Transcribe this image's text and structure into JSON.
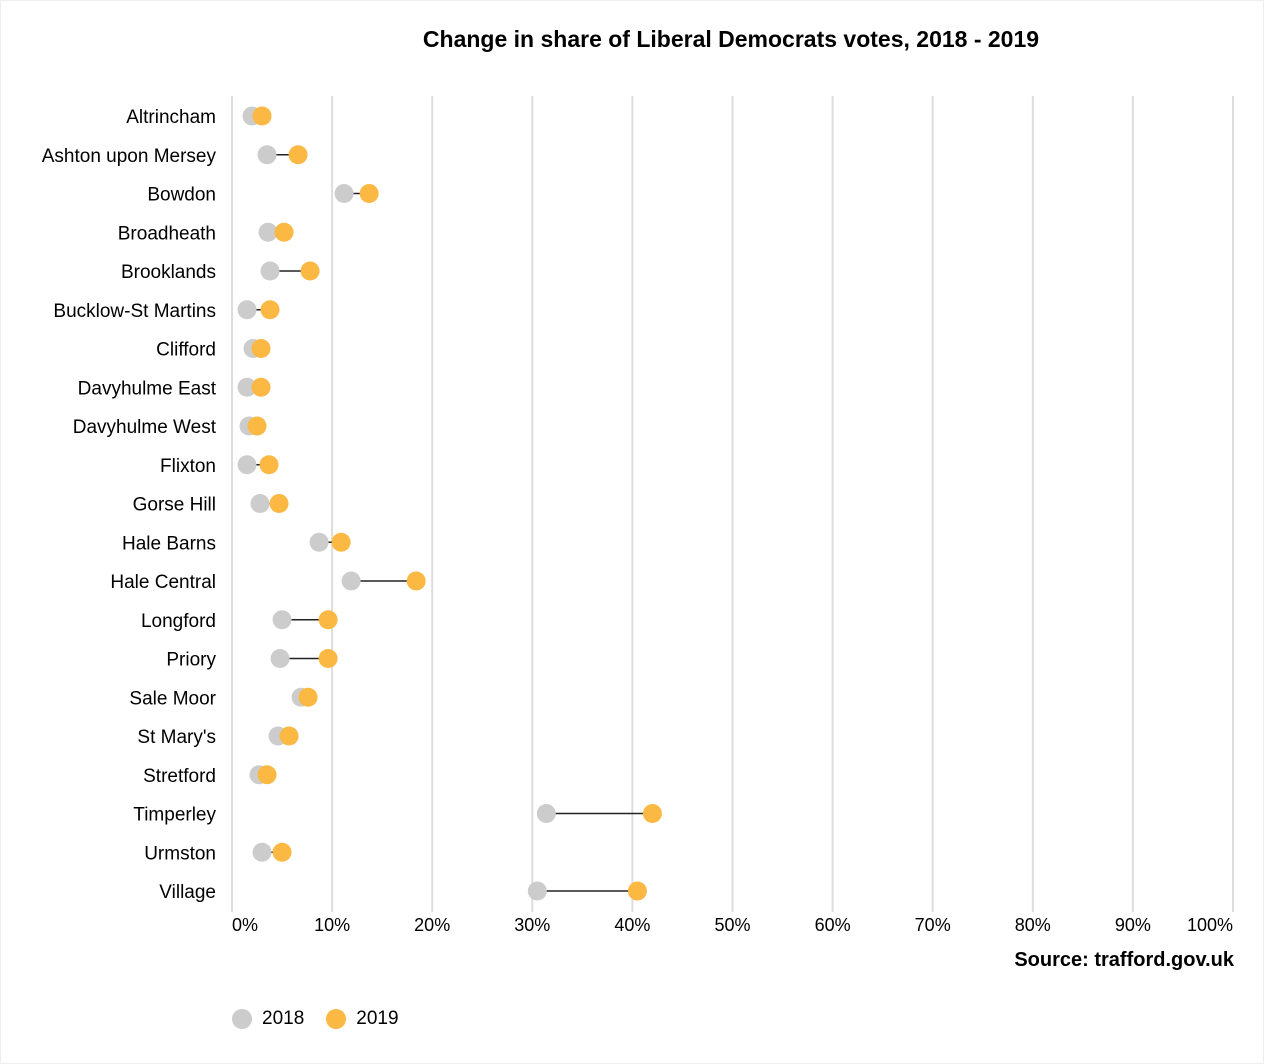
{
  "chart_data": {
    "type": "dumbbell",
    "title": "Change in share of Liberal Democrats votes, 2018 - 2019",
    "source": "Source: trafford.gov.uk",
    "categories": [
      "Altrincham",
      "Ashton upon Mersey",
      "Bowdon",
      "Broadheath",
      "Brooklands",
      "Bucklow-St Martins",
      "Clifford",
      "Davyhulme East",
      "Davyhulme West",
      "Flixton",
      "Gorse Hill",
      "Hale Barns",
      "Hale Central",
      "Longford",
      "Priory",
      "Sale Moor",
      "St Mary's",
      "Stretford",
      "Timperley",
      "Urmston",
      "Village"
    ],
    "series": [
      {
        "name": "2018",
        "color": "#cccccc",
        "values": [
          2.0,
          3.5,
          11.2,
          3.6,
          3.8,
          1.5,
          2.1,
          1.5,
          1.7,
          1.5,
          2.8,
          8.7,
          11.9,
          5.0,
          4.8,
          6.9,
          4.6,
          2.7,
          31.4,
          3.0,
          30.5
        ]
      },
      {
        "name": "2019",
        "color": "#fbb843",
        "values": [
          3.0,
          6.6,
          13.7,
          5.2,
          7.8,
          3.8,
          2.9,
          2.9,
          2.5,
          3.7,
          4.7,
          10.9,
          18.4,
          9.6,
          9.6,
          7.6,
          5.7,
          3.5,
          42.0,
          5.0,
          40.5
        ]
      }
    ],
    "xlim": [
      0,
      100
    ],
    "x_ticks": [
      "0%",
      "10%",
      "20%",
      "30%",
      "40%",
      "50%",
      "60%",
      "70%",
      "80%",
      "90%",
      "100%"
    ],
    "grid": true,
    "legend_position": "bottom-left"
  }
}
